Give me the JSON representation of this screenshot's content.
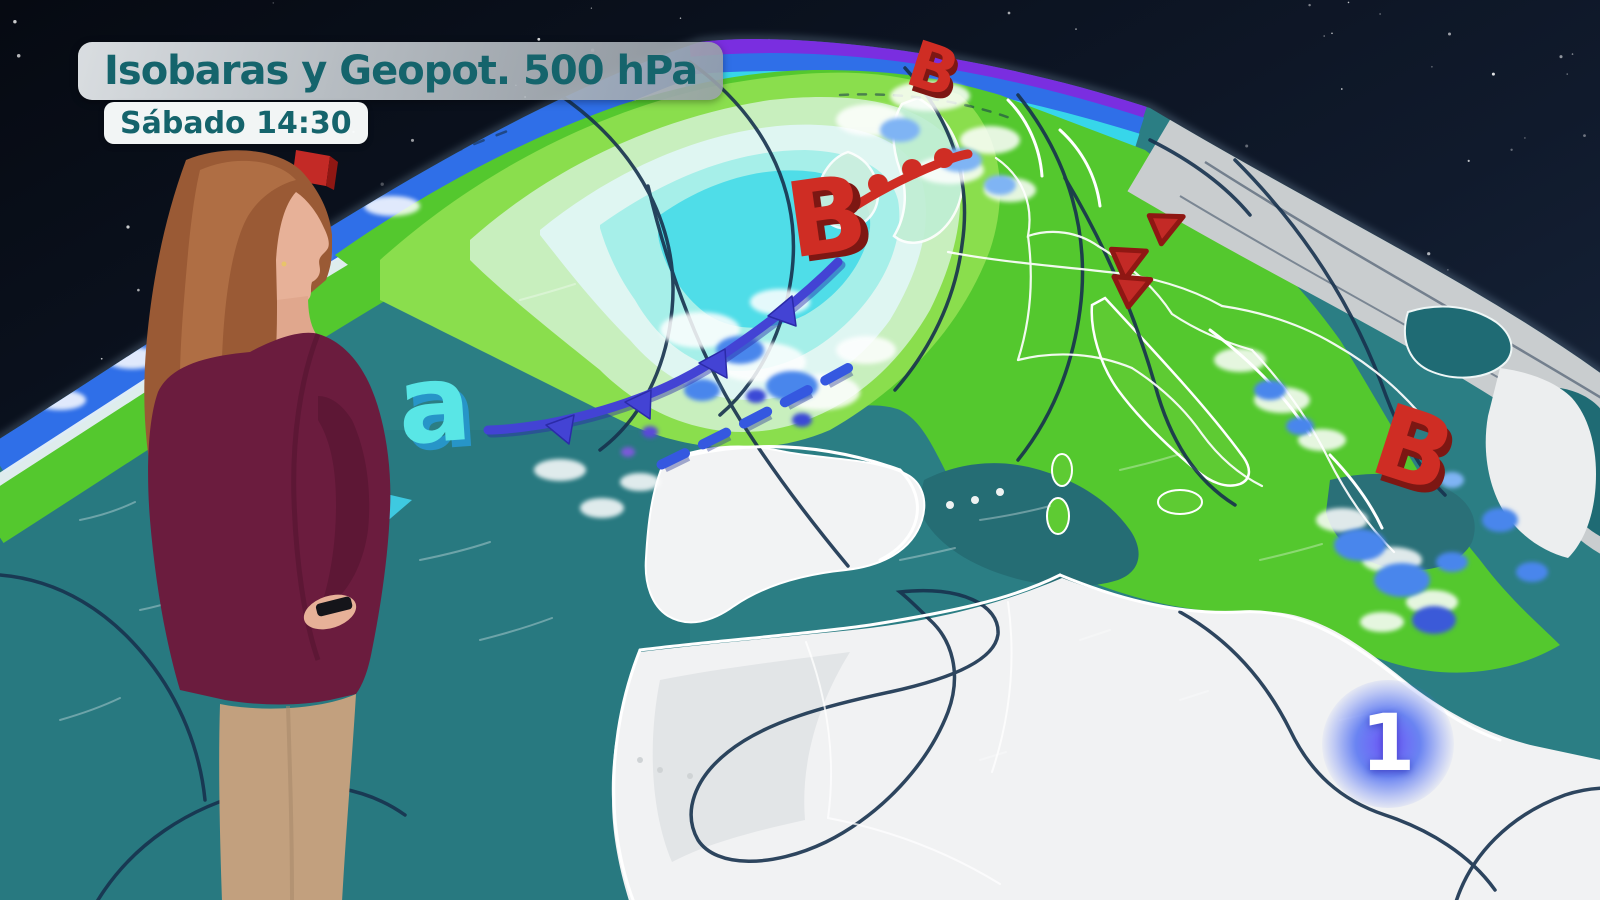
{
  "broadcast": {
    "title": "Isobaras y Geopot. 500 hPa",
    "datetime": "Sábado 14:30",
    "channel_logo": "1"
  },
  "map": {
    "type": "synoptic-weather-globe",
    "level": "500 hPa",
    "symbols": {
      "lows": [
        {
          "label": "B",
          "location": "north-of-british-isles"
        },
        {
          "label": "B",
          "location": "arctic-scandinavia"
        },
        {
          "label": "B",
          "location": "aegean-anatolia"
        }
      ],
      "high": {
        "label": "a",
        "location": "mid-atlantic"
      }
    },
    "fronts": [
      {
        "kind": "cold",
        "color": "#4343d4",
        "area": "from-low-near-british-isles-southwest"
      },
      {
        "kind": "warm",
        "color": "#cf2d24",
        "area": "from-low-northeast-to-norwegian-sea"
      },
      {
        "kind": "cold-dissipating",
        "style": "dashed",
        "color": "#3558e0",
        "area": "biscay-toward-iberia"
      },
      {
        "kind": "cold-front-marks",
        "color": "#c32a26",
        "area": "central-europe"
      }
    ],
    "palette": {
      "space": "#0a0f1c",
      "ocean_teal": "#2b7e84",
      "geopotential_green": "#54c82e",
      "trough_cyan": "#4fdde8",
      "land_neutral": "#f1f2f3",
      "limb_purple": "#7a2ee0",
      "limb_blue": "#2f6fe8",
      "right_limb_grey": "#c9cdcf",
      "precipitation_blue": "#4a86ec",
      "isoline_navy": "#17324e"
    }
  },
  "presenter": {
    "position": "left",
    "jacket_color": "#6b1c3e",
    "trousers_color": "#c2a07e",
    "hair_color": "#9a5a35"
  }
}
